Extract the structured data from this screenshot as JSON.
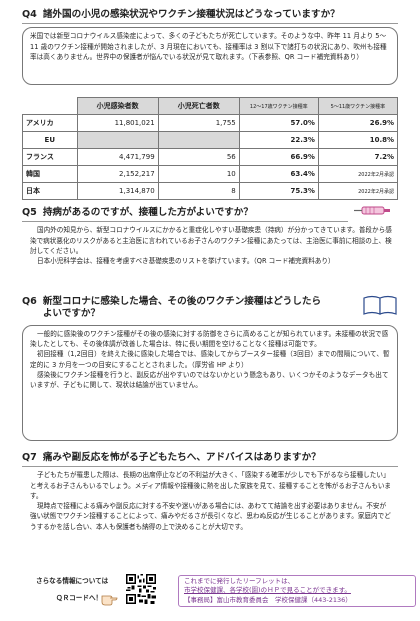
{
  "q4": {
    "num": "Q4",
    "title": "諸外国の小児の感染状況やワクチン接種状況はどうなっていますか？",
    "text": "米国では新型コロナウイルス感染症によって、多くの子どもたちが死亡しています。そのような中、昨年 11 月より 5～11 歳のワクチン接種が開始されましたが、3 月現在においても、接種率は 3 割以下で諸打ちの状況にあり、吹州も接種率は高くありません。世界中の保護者が悩んでいる状況が見て取れます。（下表参照、QR コード補完資料あり）"
  },
  "table": {
    "headers": [
      "小児感染者数",
      "小児死亡者数",
      "12～17歳ワクチン接種率",
      "5～11歳ワクチン接種率"
    ],
    "rows": [
      {
        "country": "アメリカ",
        "cases": "11,801,021",
        "deaths": "1,755",
        "v12": "57.0%",
        "v5": "26.9%"
      },
      {
        "country": "EU",
        "cases": "",
        "deaths": "",
        "v12": "22.3%",
        "v5": "10.8%"
      },
      {
        "country": "フランス",
        "cases": "4,471,799",
        "deaths": "56",
        "v12": "66.9%",
        "v5": "7.2%"
      },
      {
        "country": "韓国",
        "cases": "2,152,217",
        "deaths": "10",
        "v12": "63.4%",
        "v5": "2022年2月承認"
      },
      {
        "country": "日本",
        "cases": "1,314,870",
        "deaths": "8",
        "v12": "75.3%",
        "v5": "2022年2月承認"
      }
    ]
  },
  "q5": {
    "num": "Q5",
    "title": "持病があるのですが、接種した方がよいですか？",
    "paragraphs": [
      "国内外の知見から、新型コロナウイルスにかかると重症化しやすい基礎疾患（持病）が分かってきています。普段から感染で病状悪化のリスクがあると主治医に言われているお子さんのワクチン接種にあたっては、主治医に事前に相談の上、検討してください。",
      "日本小児科学会は、接種を考慮すべき基礎疾患のリストを挙げています。（QR コード補完資料あり）"
    ]
  },
  "q6": {
    "num": "Q6",
    "title": "新型コロナに感染した場合、その後のワクチン接種はどうしたら",
    "title2": "よいですか？",
    "paragraphs": [
      "一般的に感染後のワクチン接種がその後の感染に対する防御をさらに高めることが知られています。未接種の状況で感染したとしても、その後体調が改善した場合は、特に長い期間を空けることなく接種は可能です。",
      "初回接種（1,2回目）を終えた後に感染した場合では、感染してからブースター接種（3回目）までの間隔について、暫定的に 3 か月を一つの目安にすることとされました。（厚労省 HP より）",
      "感染後にワクチン接種を行うと、副反応が出やすいのではないかという懸念もあり、いくつかそのようなデータも出ていますが、子どもに関して、現状は結論が出ていません。"
    ]
  },
  "q7": {
    "num": "Q7",
    "title": "痛みや副反応を怖がる子どもたちへ、アドバイスはありますか？",
    "paragraphs": [
      "子どもたちが罹患した際は、長期の出席停止などの不利益が大きく、「感染する確率が少しでも下がるなら接種したい」と考えるお子さんもいるでしょう。メディア情報や接種後に熱を出した家族を見て、接種することを怖がるお子さんもいます。",
      "現時点で接種による痛みや副反応に対する不安や迷いがある場合には、あわてて結論を出す必要はありません。不安が強い状態でワクチン接種することによって、痛みやだるさが長引くなど、思わぬ反応が生じることがあります。家庭内でどうするかを話し合い、本人も保護者も納得の上で決めることが大切です。"
    ]
  },
  "footer": {
    "left1": "さらなる情報については",
    "left2": "ＱＲコードへ！",
    "right1": "これまでに発行したリーフレットは、",
    "right2": "市学校保健課、各学校(園)のＨＰで見ることができます。",
    "right3": "【事務局】富山市教育委員会　学校保健課（443-2136）"
  }
}
